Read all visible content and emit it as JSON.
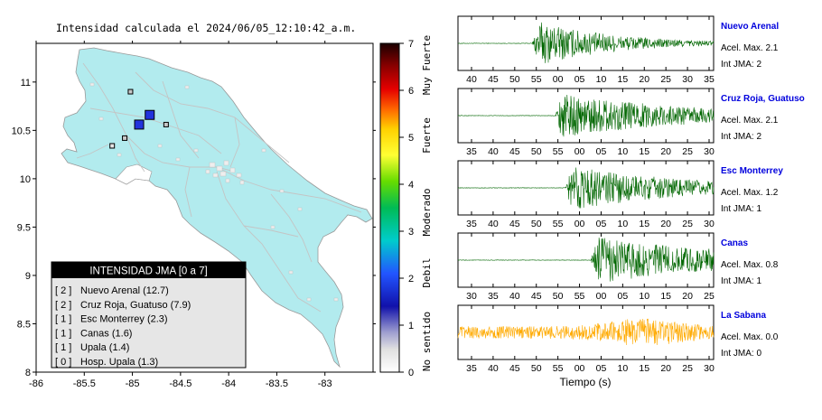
{
  "map": {
    "title": "Intensidad calculada el 2024/06/05_12:10:42_a.m.",
    "x_ticks": [
      "-86",
      "-85.5",
      "-85",
      "-84.5",
      "-84",
      "-83.5",
      "-83"
    ],
    "y_ticks": [
      "11",
      "10.5",
      "10",
      "9.5",
      "9",
      "8.5",
      "8"
    ],
    "markers": [
      {
        "lon": -84.82,
        "lat": 10.66,
        "intensity": 2,
        "color": "#2233dd",
        "size": 10
      },
      {
        "lon": -84.93,
        "lat": 10.56,
        "intensity": 2,
        "color": "#2233dd",
        "size": 10
      },
      {
        "lon": -85.02,
        "lat": 10.9,
        "intensity": 1,
        "color": "#c8c8c8",
        "size": 5
      },
      {
        "lon": -84.65,
        "lat": 10.56,
        "intensity": 1,
        "color": "#c8c8c8",
        "size": 5
      },
      {
        "lon": -85.08,
        "lat": 10.42,
        "intensity": 1,
        "color": "#c8c8c8",
        "size": 5
      },
      {
        "lon": -85.21,
        "lat": 10.34,
        "intensity": 0,
        "color": "#e6e6e6",
        "size": 5
      }
    ],
    "legend": {
      "title": "INTENSIDAD JMA [0 a 7]",
      "items": [
        {
          "level": "[ 2 ]",
          "name": "Nuevo Arenal (12.7)"
        },
        {
          "level": "[ 2 ]",
          "name": "Cruz Roja, Guatuso (7.9)"
        },
        {
          "level": "[ 1 ]",
          "name": "Esc Monterrey (2.3)"
        },
        {
          "level": "[ 1 ]",
          "name": "Canas (1.6)"
        },
        {
          "level": "[ 1 ]",
          "name": "Upala (1.4)"
        },
        {
          "level": "[ 0 ]",
          "name": "Hosp. Upala (1.3)"
        }
      ]
    }
  },
  "colorbar": {
    "ticks": [
      "7",
      "6",
      "5",
      "4",
      "3",
      "2",
      "1",
      "0"
    ],
    "labels": [
      "Muy Fuerte",
      "Fuerte",
      "Moderado",
      "Debil",
      "No sentido"
    ],
    "colors": [
      "#1a0000",
      "#8b0000",
      "#e60000",
      "#ff6600",
      "#ffd000",
      "#ffff33",
      "#66dd00",
      "#00bb55",
      "#00cccc",
      "#2255ff",
      "#1111aa",
      "#c8c8c8",
      "#ffffff"
    ]
  },
  "traces": {
    "xlabel": "Tiempo (s)",
    "stations": [
      {
        "name": "Nuevo Arenal",
        "accel": "Acel. Max. 2.1",
        "int": "Int JMA: 2",
        "color": "#006600",
        "ticks": [
          "40",
          "45",
          "50",
          "55",
          "00",
          "05",
          "10",
          "15",
          "20",
          "25",
          "30",
          "35"
        ],
        "onset": 0.29,
        "amp": 0.95,
        "decay": 3.2
      },
      {
        "name": "Cruz Roja, Guatuso",
        "accel": "Acel. Max. 2.1",
        "int": "Int JMA: 2",
        "color": "#006600",
        "ticks": [
          "35",
          "40",
          "45",
          "50",
          "55",
          "00",
          "05",
          "10",
          "15",
          "20",
          "25",
          "30"
        ],
        "onset": 0.38,
        "amp": 0.9,
        "decay": 1.8
      },
      {
        "name": "Esc Monterrey",
        "accel": "Acel. Max. 1.2",
        "int": "Int JMA: 1",
        "color": "#006600",
        "ticks": [
          "35",
          "40",
          "45",
          "50",
          "55",
          "00",
          "05",
          "10",
          "15",
          "20",
          "25",
          "30"
        ],
        "onset": 0.42,
        "amp": 0.95,
        "decay": 2.2
      },
      {
        "name": "Canas",
        "accel": "Acel. Max. 0.8",
        "int": "Int JMA: 1",
        "color": "#006600",
        "ticks": [
          "30",
          "35",
          "40",
          "45",
          "50",
          "55",
          "00",
          "05",
          "10",
          "15",
          "20",
          "25"
        ],
        "onset": 0.52,
        "amp": 0.95,
        "decay": 1.6
      },
      {
        "name": "La Sabana",
        "accel": "Acel. Max. 0.0",
        "int": "Int JMA: 0",
        "color": "#ffaa00",
        "ticks": [
          "35",
          "40",
          "45",
          "50",
          "55",
          "00",
          "05",
          "10",
          "15",
          "20",
          "25",
          "30"
        ],
        "onset": 0.0,
        "amp": 0.55,
        "decay": 0
      }
    ]
  }
}
